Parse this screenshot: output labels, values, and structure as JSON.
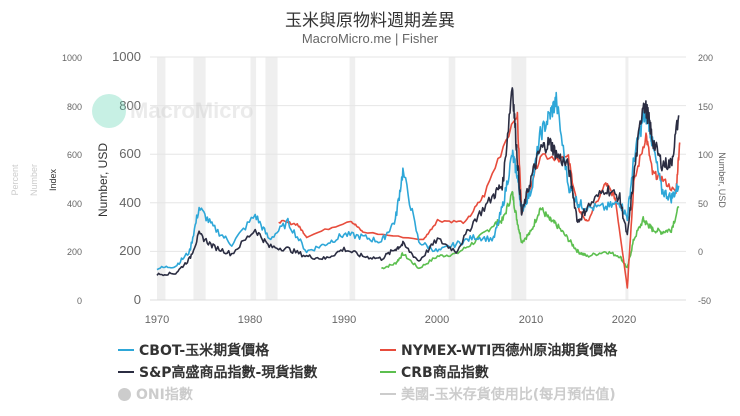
{
  "header": {
    "title": "玉米與原物料週期差異",
    "subtitle": "MacroMicro.me | Fisher"
  },
  "watermark": {
    "text": "MacroMicro"
  },
  "axes": {
    "left_outer": {
      "ticks": [
        "1000",
        "800",
        "600",
        "400",
        "200",
        "0"
      ]
    },
    "left_outer_labels": [
      "Percent",
      "Number",
      "Index"
    ],
    "left_main": {
      "label": "Number, USD",
      "ticks": [
        "1000",
        "800",
        "600",
        "400",
        "200",
        "0"
      ]
    },
    "right": {
      "label": "Number, USD",
      "ticks": [
        "200",
        "150",
        "100",
        "50",
        "0",
        "-50"
      ]
    },
    "x": {
      "ticks": [
        "1970",
        "1980",
        "1990",
        "2000",
        "2010",
        "2020"
      ]
    }
  },
  "legend": [
    {
      "label": "CBOT-玉米期貨價格",
      "color": "#2ea7d8",
      "active": true,
      "type": "line"
    },
    {
      "label": "NYMEX-WTI西德州原油期貨價格",
      "color": "#e74c3c",
      "active": true,
      "type": "line"
    },
    {
      "label": "S&P高盛商品指數-現貨指數",
      "color": "#2b2d42",
      "active": true,
      "type": "line"
    },
    {
      "label": "CRB商品指數",
      "color": "#5cbf4f",
      "active": true,
      "type": "line"
    },
    {
      "label": "ONI指數",
      "color": "#cccccc",
      "active": false,
      "type": "dot"
    },
    {
      "label": "美國-玉米存貨使用比(每月預估值)",
      "color": "#cccccc",
      "active": false,
      "type": "line"
    }
  ],
  "chart_data": {
    "type": "line",
    "title": "玉米與原物料週期差異",
    "subtitle": "MacroMicro.me | Fisher",
    "xlabel": "",
    "ylabel_left": "Number, USD",
    "ylabel_right": "Number, USD",
    "ylim_left": [
      0,
      1000
    ],
    "ylim_right": [
      -50,
      200
    ],
    "xlim": [
      1970,
      2026
    ],
    "grid": true,
    "recession_bands": [
      [
        1970.0,
        1970.9
      ],
      [
        1973.9,
        1975.2
      ],
      [
        1980.0,
        1980.6
      ],
      [
        1981.6,
        1982.9
      ],
      [
        1990.6,
        1991.2
      ],
      [
        2001.2,
        2001.9
      ],
      [
        2007.9,
        2009.5
      ],
      [
        2020.1,
        2020.4
      ]
    ],
    "x": [
      1970,
      1972,
      1973.5,
      1974.5,
      1976,
      1978,
      1980.5,
      1982,
      1984,
      1986,
      1988,
      1990,
      1992,
      1994,
      1995.5,
      1996.3,
      1998,
      2000,
      2002,
      2004,
      2006,
      2007,
      2008,
      2008.5,
      2009,
      2010,
      2011,
      2012,
      2012.7,
      2014,
      2015,
      2016,
      2018,
      2019.5,
      2020.3,
      2021,
      2022,
      2022.5,
      2023,
      2024,
      2025,
      2025.8
    ],
    "series": [
      {
        "name": "CBOT-玉米期貨價格",
        "axis": "left",
        "color": "#2ea7d8",
        "values": [
          130,
          140,
          200,
          380,
          300,
          230,
          350,
          250,
          320,
          200,
          230,
          270,
          260,
          240,
          330,
          530,
          240,
          200,
          230,
          260,
          250,
          390,
          600,
          520,
          370,
          450,
          680,
          760,
          820,
          470,
          400,
          380,
          380,
          400,
          340,
          580,
          750,
          760,
          640,
          450,
          420,
          470
        ]
      },
      {
        "name": "NYMEX-WTI西德州原油期貨價格",
        "axis": "right",
        "color": "#e74c3c",
        "values": [
          null,
          null,
          null,
          null,
          null,
          null,
          null,
          null,
          null,
          null,
          null,
          null,
          null,
          null,
          null,
          null,
          null,
          null,
          null,
          null,
          null,
          null,
          null,
          null,
          null,
          null,
          null,
          null,
          null,
          null,
          null,
          null,
          null,
          null,
          null,
          null,
          null,
          null,
          null,
          null,
          null,
          null
        ]
      },
      {
        "name": "S&P高盛商品指數-現貨指數",
        "axis": "left",
        "color": "#2b2d42",
        "values": [
          105,
          110,
          170,
          270,
          220,
          190,
          290,
          220,
          210,
          180,
          170,
          210,
          180,
          170,
          210,
          230,
          160,
          250,
          200,
          330,
          430,
          480,
          890,
          600,
          350,
          500,
          620,
          650,
          600,
          550,
          320,
          380,
          460,
          420,
          260,
          510,
          820,
          760,
          660,
          560,
          560,
          760
        ]
      },
      {
        "name": "CRB商品指數",
        "axis": "left",
        "color": "#5cbf4f",
        "values": [
          null,
          null,
          null,
          null,
          null,
          null,
          null,
          null,
          null,
          null,
          null,
          null,
          null,
          130,
          150,
          190,
          130,
          180,
          190,
          240,
          310,
          330,
          440,
          330,
          240,
          280,
          380,
          330,
          310,
          250,
          200,
          180,
          200,
          180,
          130,
          250,
          330,
          310,
          290,
          280,
          290,
          380
        ]
      }
    ],
    "wti_approx": {
      "x": [
        1983,
        1985,
        1986,
        1990.7,
        1992,
        1998.5,
        2000,
        2003,
        2005,
        2008.5,
        2009,
        2011,
        2014,
        2015,
        2016,
        2018,
        2019,
        2020.3,
        2021,
        2022.3,
        2023,
        2024,
        2025.5,
        2025.9
      ],
      "values_usd": [
        31,
        28,
        15,
        32,
        20,
        12,
        32,
        30,
        58,
        145,
        40,
        100,
        95,
        45,
        30,
        70,
        55,
        -37,
        70,
        120,
        80,
        75,
        60,
        112
      ]
    }
  }
}
